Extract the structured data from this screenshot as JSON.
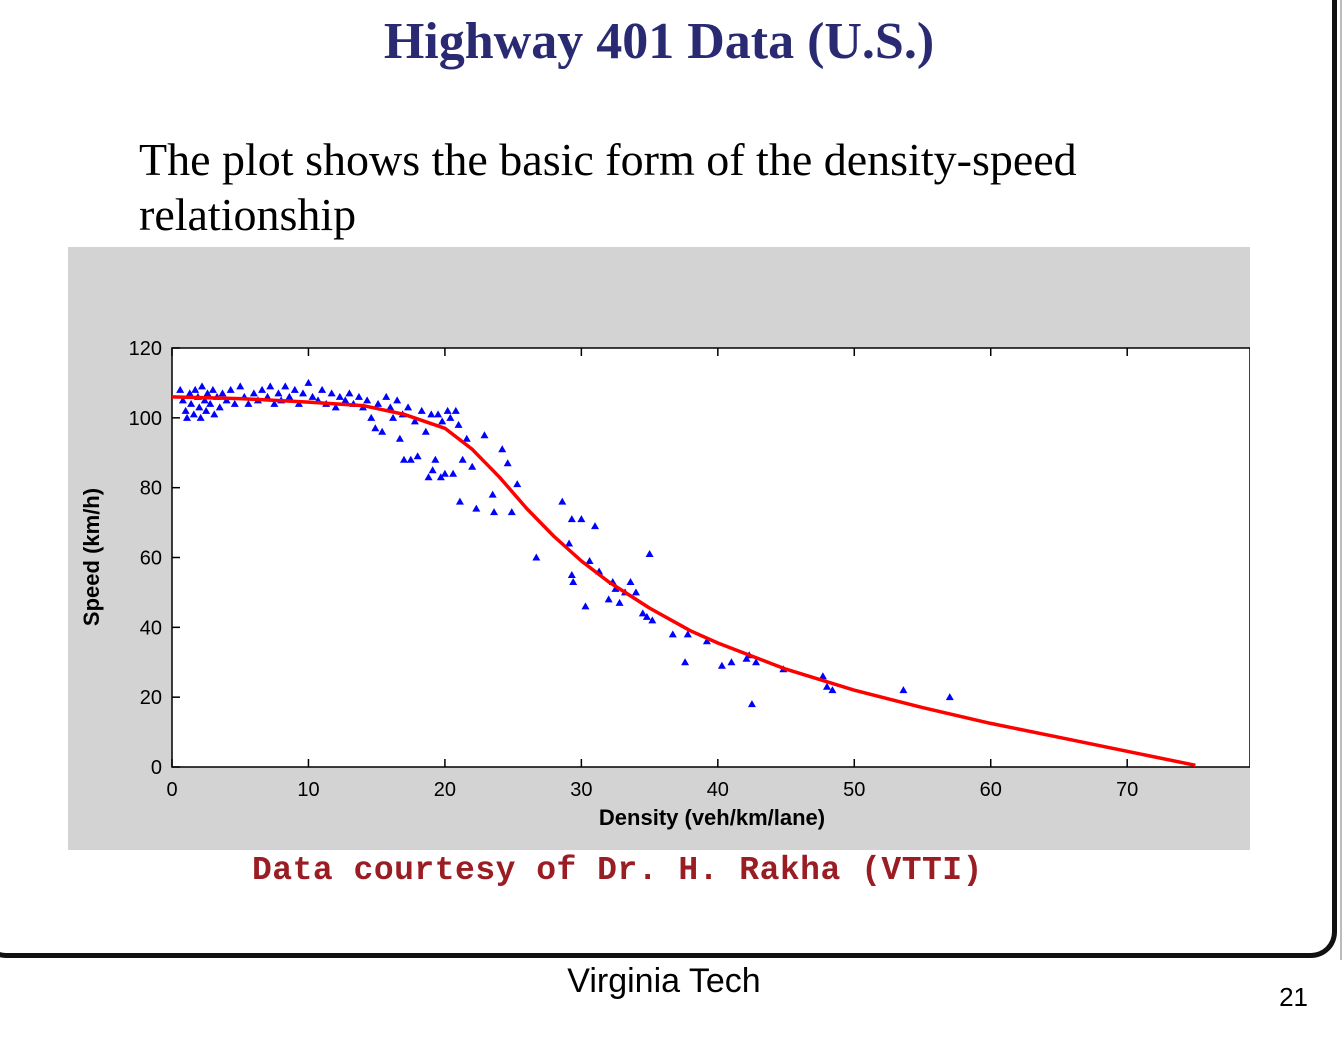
{
  "slide": {
    "title": "Highway 401 Data (U.S.)",
    "body": "The plot shows the basic form of the density-speed relationship",
    "credit": "Data courtesy of Dr. H. Rakha (VTTI)",
    "footer": "Virginia Tech",
    "page_number": "21"
  },
  "colors": {
    "title": "#2a2a73",
    "credit": "#9b1d24",
    "panel_background": "#d3d3d3",
    "points": "#0000ff",
    "fit_line": "#ff0000"
  },
  "chart_data": {
    "type": "scatter",
    "xlabel": "Density (veh/km/lane)",
    "ylabel": "Speed (km/h)",
    "xlim": [
      0,
      79
    ],
    "ylim": [
      0,
      120
    ],
    "x_ticks": [
      0,
      10,
      20,
      30,
      40,
      50,
      60,
      70
    ],
    "y_ticks": [
      0,
      20,
      40,
      60,
      80,
      100,
      120
    ],
    "grid": false,
    "legend": "none",
    "series": [
      {
        "kind": "points",
        "color": "#0000ff",
        "points": [
          [
            0.6,
            108
          ],
          [
            0.8,
            105
          ],
          [
            1.0,
            102
          ],
          [
            1.1,
            100
          ],
          [
            1.3,
            107
          ],
          [
            1.4,
            104
          ],
          [
            1.6,
            101
          ],
          [
            1.7,
            108
          ],
          [
            1.9,
            106
          ],
          [
            2.0,
            103
          ],
          [
            2.1,
            100
          ],
          [
            2.2,
            109
          ],
          [
            2.4,
            105
          ],
          [
            2.5,
            102
          ],
          [
            2.6,
            107
          ],
          [
            2.8,
            104
          ],
          [
            3.0,
            108
          ],
          [
            3.1,
            101
          ],
          [
            3.3,
            106
          ],
          [
            3.5,
            103
          ],
          [
            3.7,
            107
          ],
          [
            4.0,
            105
          ],
          [
            4.3,
            108
          ],
          [
            4.6,
            104
          ],
          [
            5.0,
            109
          ],
          [
            5.3,
            106
          ],
          [
            5.6,
            104
          ],
          [
            6.0,
            107
          ],
          [
            6.3,
            105
          ],
          [
            6.6,
            108
          ],
          [
            7.0,
            106
          ],
          [
            7.2,
            109
          ],
          [
            7.5,
            104
          ],
          [
            7.8,
            107
          ],
          [
            8.0,
            105
          ],
          [
            8.3,
            109
          ],
          [
            8.6,
            106
          ],
          [
            9.0,
            108
          ],
          [
            9.3,
            104
          ],
          [
            9.6,
            107
          ],
          [
            10.0,
            110
          ],
          [
            10.3,
            106
          ],
          [
            10.7,
            105
          ],
          [
            11.0,
            108
          ],
          [
            11.3,
            104
          ],
          [
            11.7,
            107
          ],
          [
            12.0,
            103
          ],
          [
            12.3,
            106
          ],
          [
            12.7,
            105
          ],
          [
            13.0,
            107
          ],
          [
            13.3,
            104
          ],
          [
            13.7,
            106
          ],
          [
            14.0,
            103
          ],
          [
            14.3,
            105
          ],
          [
            14.6,
            100
          ],
          [
            14.9,
            97
          ],
          [
            15.1,
            104
          ],
          [
            15.4,
            96
          ],
          [
            15.7,
            106
          ],
          [
            16.0,
            103
          ],
          [
            16.2,
            100
          ],
          [
            16.5,
            105
          ],
          [
            16.7,
            94
          ],
          [
            16.9,
            101
          ],
          [
            17.0,
            88
          ],
          [
            17.3,
            103
          ],
          [
            17.5,
            88
          ],
          [
            17.8,
            99
          ],
          [
            18.0,
            89
          ],
          [
            18.3,
            102
          ],
          [
            18.6,
            96
          ],
          [
            18.8,
            83
          ],
          [
            19.0,
            101
          ],
          [
            19.1,
            85
          ],
          [
            19.3,
            88
          ],
          [
            19.5,
            101
          ],
          [
            19.7,
            83
          ],
          [
            19.8,
            99
          ],
          [
            20.0,
            84
          ],
          [
            20.2,
            102
          ],
          [
            20.4,
            100
          ],
          [
            20.6,
            84
          ],
          [
            20.8,
            102
          ],
          [
            21.0,
            98
          ],
          [
            21.1,
            76
          ],
          [
            21.3,
            88
          ],
          [
            21.6,
            94
          ],
          [
            22.0,
            86
          ],
          [
            22.3,
            74
          ],
          [
            22.9,
            95
          ],
          [
            23.5,
            78
          ],
          [
            23.6,
            73
          ],
          [
            24.2,
            91
          ],
          [
            24.6,
            87
          ],
          [
            24.9,
            73
          ],
          [
            25.3,
            81
          ],
          [
            26.7,
            60
          ],
          [
            28.6,
            76
          ],
          [
            29.1,
            64
          ],
          [
            29.3,
            55
          ],
          [
            29.3,
            71
          ],
          [
            29.4,
            53
          ],
          [
            30.0,
            71
          ],
          [
            30.3,
            46
          ],
          [
            30.6,
            59
          ],
          [
            31.0,
            69
          ],
          [
            31.3,
            56
          ],
          [
            32.0,
            48
          ],
          [
            32.3,
            53
          ],
          [
            32.5,
            51
          ],
          [
            32.8,
            47
          ],
          [
            33.2,
            50
          ],
          [
            33.6,
            53
          ],
          [
            34.0,
            50
          ],
          [
            34.5,
            44
          ],
          [
            34.8,
            43
          ],
          [
            35.0,
            61
          ],
          [
            35.2,
            42
          ],
          [
            36.7,
            38
          ],
          [
            37.6,
            30
          ],
          [
            37.8,
            38
          ],
          [
            39.2,
            36
          ],
          [
            40.3,
            29
          ],
          [
            41.0,
            30
          ],
          [
            42.1,
            31
          ],
          [
            42.3,
            32
          ],
          [
            42.5,
            18
          ],
          [
            42.8,
            30
          ],
          [
            44.8,
            28
          ],
          [
            47.7,
            26
          ],
          [
            48.0,
            23
          ],
          [
            48.4,
            22
          ],
          [
            53.6,
            22
          ],
          [
            57.0,
            20
          ]
        ]
      },
      {
        "kind": "fit_line",
        "color": "#ff0000",
        "points": [
          [
            0,
            106
          ],
          [
            5,
            105.5
          ],
          [
            10,
            104.5
          ],
          [
            14,
            103.5
          ],
          [
            17,
            101
          ],
          [
            20,
            97
          ],
          [
            22,
            91
          ],
          [
            24,
            83
          ],
          [
            26,
            74
          ],
          [
            28,
            66
          ],
          [
            30,
            59
          ],
          [
            32,
            53
          ],
          [
            35,
            45.5
          ],
          [
            38,
            39
          ],
          [
            40,
            35.5
          ],
          [
            45,
            28
          ],
          [
            50,
            22
          ],
          [
            55,
            17
          ],
          [
            60,
            12.5
          ],
          [
            65,
            8.5
          ],
          [
            70,
            4.5
          ],
          [
            75,
            0.5
          ]
        ]
      }
    ]
  }
}
